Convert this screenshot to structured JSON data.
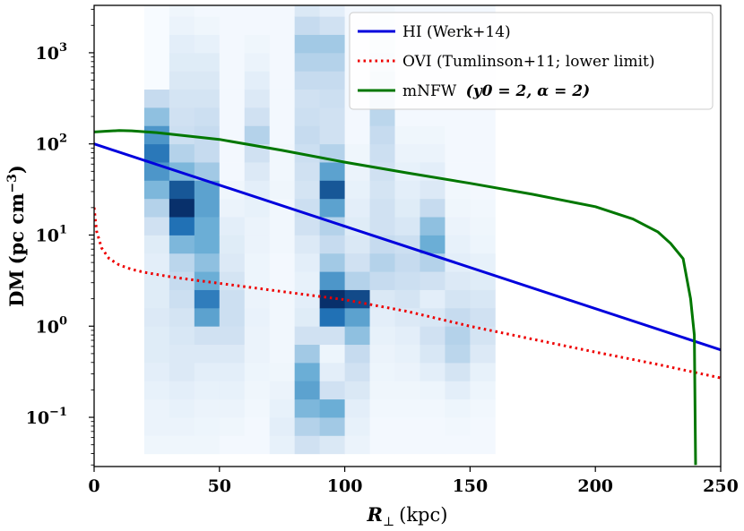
{
  "chart_data": {
    "type": "line",
    "xlabel_main": "R",
    "xlabel_sub": "⊥",
    "xlabel_unit": "(kpc)",
    "ylabel_main": "DM",
    "ylabel_unit_pre": "(pc cm",
    "ylabel_unit_exp": "−3",
    "ylabel_unit_post": ")",
    "xlim": [
      0,
      250
    ],
    "ylim_log10": [
      -1.54,
      3.52
    ],
    "x_ticks": [
      0,
      50,
      100,
      150,
      200,
      250
    ],
    "x_tick_labels": [
      "0",
      "50",
      "100",
      "150",
      "200",
      "250"
    ],
    "y_ticks_log10": [
      -1,
      0,
      1,
      2,
      3
    ],
    "y_tick_base": [
      "10",
      "10",
      "10",
      "10",
      "10"
    ],
    "y_tick_exps": [
      "−1",
      "0",
      "1",
      "2",
      "3"
    ],
    "legend_position": "top-right",
    "series": [
      {
        "name": "HI (Werk+14)",
        "color": "#0000dd",
        "style": "solid",
        "x": [
          0,
          250
        ],
        "y": [
          100,
          0.55
        ]
      },
      {
        "name": "OVI (Tumlinson+11; lower limit)",
        "color": "#ee0000",
        "style": "dotted",
        "x": [
          0,
          1,
          3,
          6,
          10,
          15,
          20,
          30,
          40,
          50,
          75,
          100,
          125,
          150,
          175,
          200,
          225,
          250
        ],
        "y": [
          20,
          11,
          7.2,
          5.5,
          4.7,
          4.2,
          3.9,
          3.5,
          3.2,
          2.95,
          2.4,
          1.95,
          1.45,
          1.0,
          0.72,
          0.52,
          0.38,
          0.27
        ]
      },
      {
        "name": "mNFW",
        "name_params": "(y0 = 2, α = 2)",
        "color": "#007700",
        "style": "solid",
        "x": [
          0,
          5,
          10,
          15,
          25,
          50,
          75,
          100,
          125,
          150,
          175,
          200,
          215,
          225,
          230,
          235,
          238,
          239.5,
          240
        ],
        "y": [
          135,
          138,
          140,
          139,
          133,
          112,
          85,
          63,
          48,
          37,
          28,
          20.5,
          15,
          10.8,
          8.1,
          5.5,
          2.0,
          0.8,
          0.03
        ]
      }
    ],
    "histogram": {
      "description_colormap": "Blues",
      "bin_width_x": 10,
      "bins_x": [
        20,
        30,
        40,
        50,
        60,
        70,
        80,
        90,
        100,
        110,
        120,
        130,
        140,
        150
      ],
      "bin_edges_log10": [
        -1.4,
        -1.2,
        -1.0,
        -0.8,
        -0.6,
        -0.4,
        -0.2,
        0.0,
        0.2,
        0.4,
        0.6,
        0.8,
        1.0,
        1.2,
        1.4,
        1.6,
        1.8,
        2.0,
        2.2,
        2.4,
        2.6,
        2.8,
        3.0,
        3.2,
        3.4,
        3.6
      ],
      "intensity": [
        [
          0.04,
          0.06,
          0.06,
          0.08,
          0.1,
          0.12,
          0.12,
          0.14,
          0.12,
          0.12,
          0.1,
          0.12,
          0.2,
          0.3,
          0.45,
          0.6,
          0.72,
          0.6,
          0.4,
          0.25,
          0.0,
          0.0,
          0.0,
          0.0,
          0.0
        ],
        [
          0.04,
          0.06,
          0.08,
          0.1,
          0.14,
          0.14,
          0.16,
          0.18,
          0.22,
          0.25,
          0.28,
          0.45,
          0.75,
          1.0,
          0.85,
          0.45,
          0.3,
          0.22,
          0.2,
          0.18,
          0.15,
          0.12,
          0.1,
          0.06,
          0.04
        ],
        [
          0.04,
          0.05,
          0.06,
          0.08,
          0.1,
          0.14,
          0.2,
          0.55,
          0.7,
          0.5,
          0.4,
          0.5,
          0.5,
          0.55,
          0.55,
          0.35,
          0.25,
          0.25,
          0.22,
          0.18,
          0.15,
          0.12,
          0.08,
          0.04,
          0.02
        ],
        [
          0.02,
          0.04,
          0.06,
          0.08,
          0.1,
          0.14,
          0.2,
          0.22,
          0.22,
          0.18,
          0.14,
          0.12,
          0.1,
          0.06,
          0.04,
          0.02,
          0.02,
          0.02,
          0.02,
          0.02,
          0.02,
          0.02,
          0.02,
          0.02,
          0.02
        ],
        [
          0.02,
          0.02,
          0.03,
          0.04,
          0.05,
          0.06,
          0.06,
          0.07,
          0.06,
          0.05,
          0.05,
          0.06,
          0.06,
          0.08,
          0.1,
          0.14,
          0.2,
          0.3,
          0.2,
          0.14,
          0.1,
          0.06,
          0.04,
          0.02,
          0.02
        ],
        [
          0.08,
          0.1,
          0.08,
          0.06,
          0.04,
          0.03,
          0.03,
          0.03,
          0.03,
          0.02,
          0.02,
          0.03,
          0.03,
          0.03,
          0.04,
          0.03,
          0.03,
          0.02,
          0.02,
          0.02,
          0.02,
          0.02,
          0.02,
          0.02,
          0.02
        ],
        [
          0.2,
          0.3,
          0.45,
          0.55,
          0.5,
          0.35,
          0.2,
          0.12,
          0.1,
          0.08,
          0.1,
          0.14,
          0.2,
          0.22,
          0.18,
          0.2,
          0.22,
          0.25,
          0.22,
          0.2,
          0.25,
          0.3,
          0.35,
          0.25,
          0.15
        ],
        [
          0.15,
          0.35,
          0.5,
          0.2,
          0.1,
          0.05,
          0.2,
          0.75,
          1.0,
          0.6,
          0.35,
          0.25,
          0.3,
          0.55,
          0.85,
          0.55,
          0.3,
          0.2,
          0.2,
          0.22,
          0.25,
          0.3,
          0.35,
          0.2,
          0.1
        ],
        [
          0.06,
          0.08,
          0.1,
          0.15,
          0.2,
          0.25,
          0.4,
          0.55,
          0.9,
          0.3,
          0.2,
          0.15,
          0.12,
          0.1,
          0.08,
          0.06,
          0.04,
          0.02,
          0.02,
          0.02,
          0.02,
          0.02,
          0.02,
          0.02,
          0.02
        ],
        [
          0.02,
          0.02,
          0.03,
          0.04,
          0.05,
          0.06,
          0.08,
          0.1,
          0.15,
          0.25,
          0.3,
          0.25,
          0.2,
          0.2,
          0.18,
          0.2,
          0.22,
          0.25,
          0.28,
          0.25,
          0.2,
          0.15,
          0.1,
          0.06,
          0.04
        ],
        [
          0.02,
          0.02,
          0.03,
          0.04,
          0.06,
          0.08,
          0.1,
          0.14,
          0.18,
          0.22,
          0.25,
          0.22,
          0.16,
          0.12,
          0.1,
          0.08,
          0.06,
          0.04,
          0.02,
          0.02,
          0.02,
          0.02,
          0.02,
          0.02,
          0.02
        ],
        [
          0.02,
          0.02,
          0.03,
          0.05,
          0.1,
          0.16,
          0.2,
          0.16,
          0.1,
          0.2,
          0.3,
          0.5,
          0.4,
          0.25,
          0.14,
          0.1,
          0.06,
          0.04,
          0.02,
          0.02,
          0.02,
          0.02,
          0.02,
          0.02,
          0.02
        ],
        [
          0.02,
          0.03,
          0.05,
          0.1,
          0.18,
          0.28,
          0.3,
          0.25,
          0.18,
          0.14,
          0.1,
          0.08,
          0.06,
          0.04,
          0.03,
          0.02,
          0.02,
          0.02,
          0.02,
          0.02,
          0.02,
          0.02,
          0.02,
          0.02,
          0.02
        ],
        [
          0.02,
          0.02,
          0.03,
          0.05,
          0.08,
          0.14,
          0.18,
          0.2,
          0.16,
          0.12,
          0.08,
          0.05,
          0.04,
          0.03,
          0.02,
          0.02,
          0.02,
          0.02,
          0.02,
          0.02,
          0.02,
          0.02,
          0.02,
          0.02,
          0.02
        ]
      ]
    }
  }
}
